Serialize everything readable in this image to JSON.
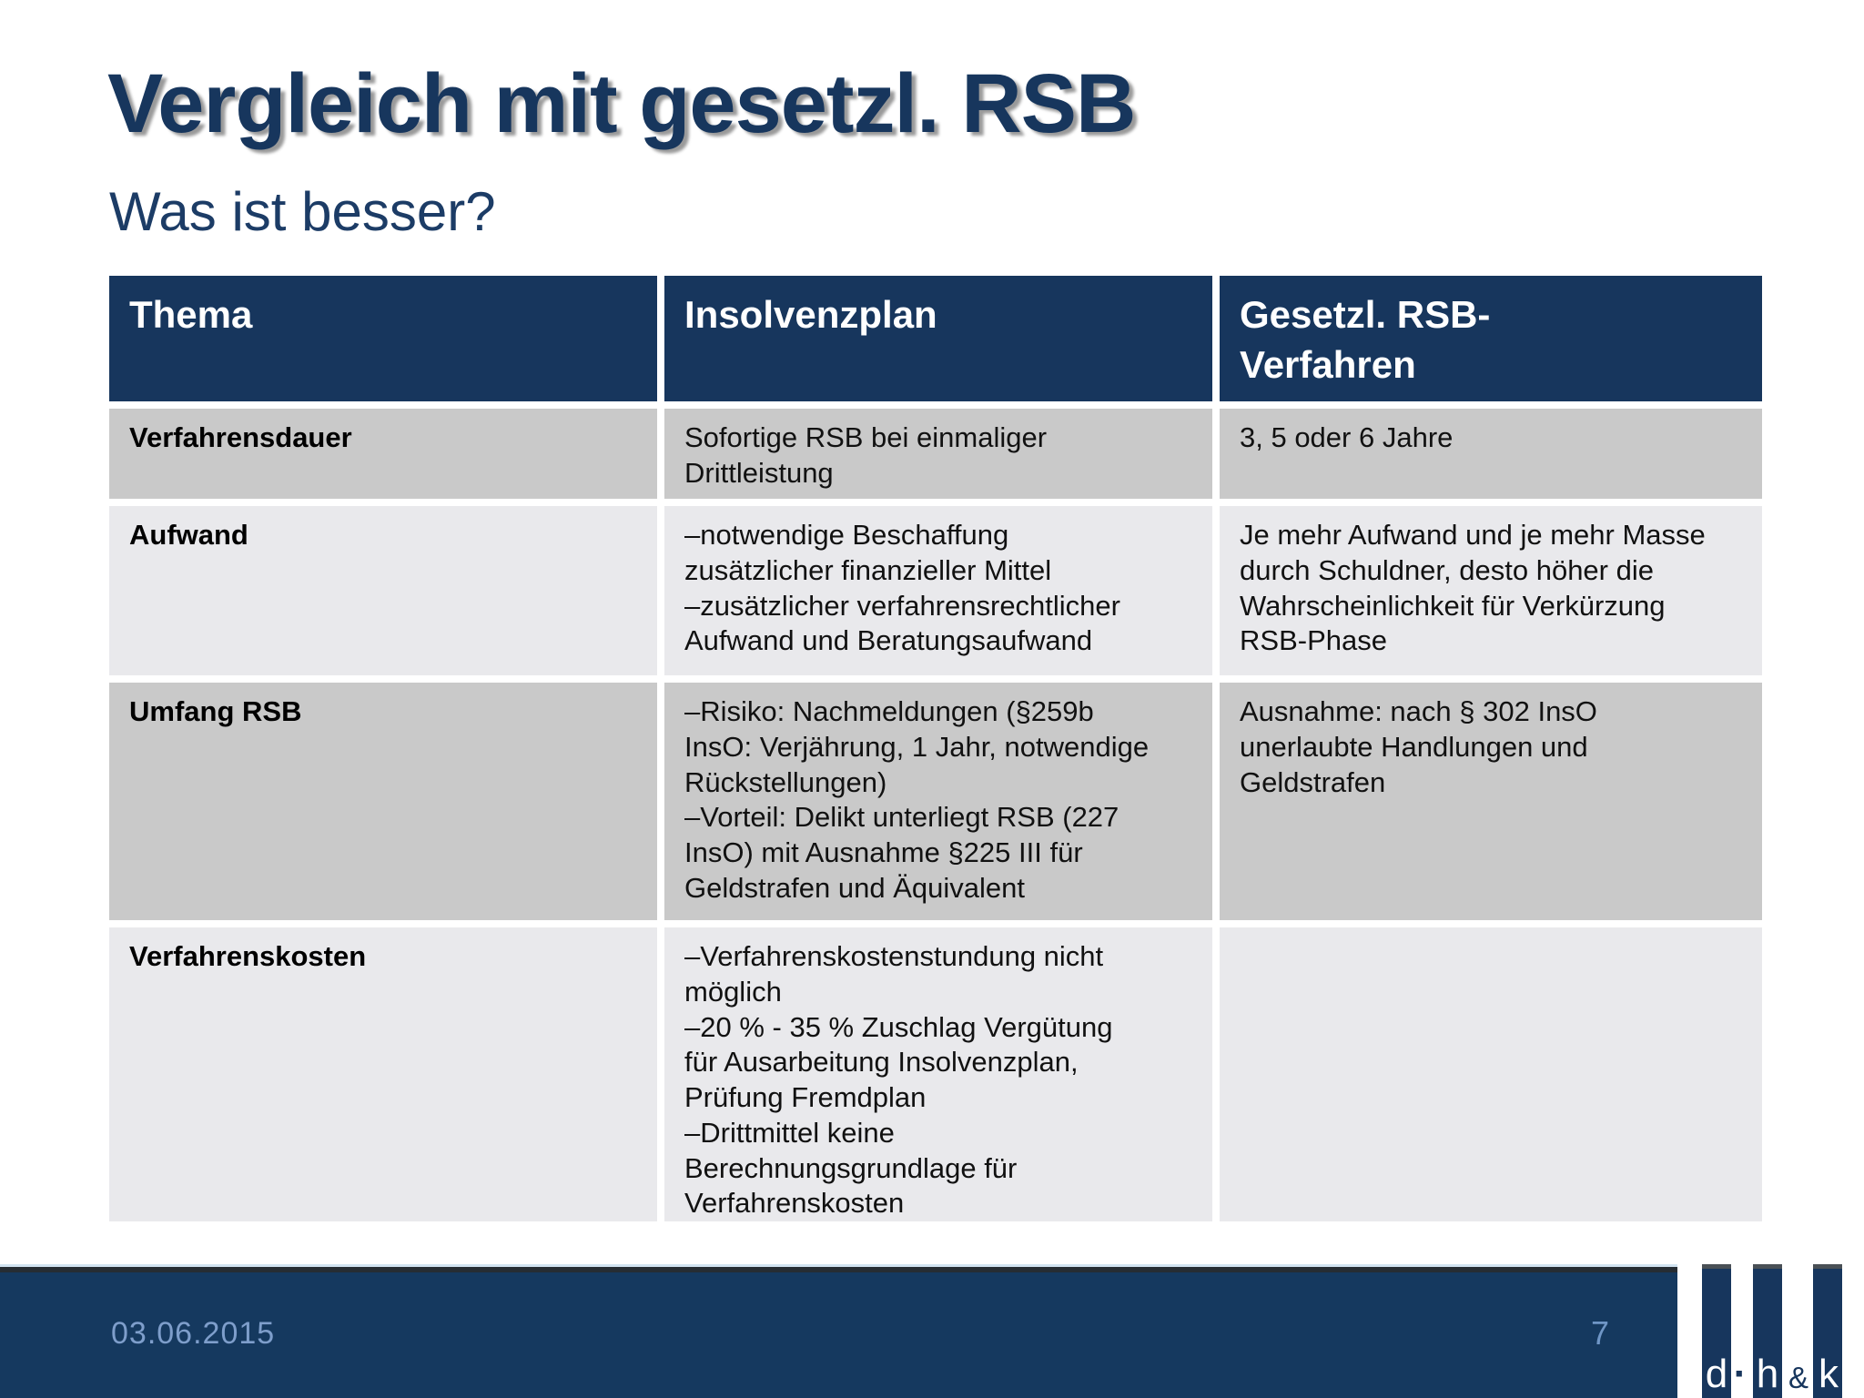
{
  "slide": {
    "title": "Vergleich mit gesetzl. RSB",
    "subtitle": "Was ist besser?"
  },
  "table": {
    "headers": [
      "Thema",
      "Insolvenzplan",
      "Gesetzl. RSB-\nVerfahren"
    ],
    "rows": [
      {
        "label": "Verfahrensdauer",
        "insolvenzplan": [
          "Sofortige RSB bei einmaliger\nDrittleistung"
        ],
        "gesetzl_rsb": [
          "3, 5 oder 6 Jahre"
        ]
      },
      {
        "label": "Aufwand",
        "insolvenzplan": [
          "–notwendige Beschaffung\nzusätzlicher finanzieller Mittel",
          "–zusätzlicher verfahrensrechtlicher\nAufwand und Beratungsaufwand"
        ],
        "gesetzl_rsb": [
          "Je mehr Aufwand und je mehr Masse\ndurch Schuldner, desto höher die\nWahrscheinlichkeit für Verkürzung\nRSB-Phase"
        ]
      },
      {
        "label": "Umfang RSB",
        "insolvenzplan": [
          "–Risiko: Nachmeldungen (§259b\nInsO: Verjährung, 1 Jahr, notwendige\nRückstellungen)",
          "–Vorteil: Delikt unterliegt RSB (227\nInsO) mit Ausnahme §225 III für\nGeldstrafen und Äquivalent"
        ],
        "gesetzl_rsb": [
          "Ausnahme: nach § 302 InsO\nunerlaubte Handlungen und\nGeldstrafen"
        ]
      },
      {
        "label": "Verfahrenskosten",
        "insolvenzplan": [
          "–Verfahrenskostenstundung nicht\nmöglich",
          "–20 % - 35 % Zuschlag Vergütung\nfür Ausarbeitung Insolvenzplan,\nPrüfung Fremdplan",
          "–Drittmittel keine\nBerechnungsgrundlage für\nVerfahrenskosten"
        ],
        "gesetzl_rsb": []
      }
    ]
  },
  "footer": {
    "date": "03.06.2015",
    "page_number": "7"
  },
  "logo": {
    "letters": [
      "d",
      "·",
      "h",
      "&",
      "k"
    ]
  },
  "colors": {
    "title_navy": "#17365d",
    "header_navy": "#17365d",
    "footer_navy": "#15395f",
    "row_dark_gray": "#c9c9c9",
    "row_light_gray": "#e9e9ec",
    "footer_text_blue": "#7e9ecb",
    "footer_topline_dark": "#262d33",
    "footer_topline_light": "#d2e4f1"
  }
}
